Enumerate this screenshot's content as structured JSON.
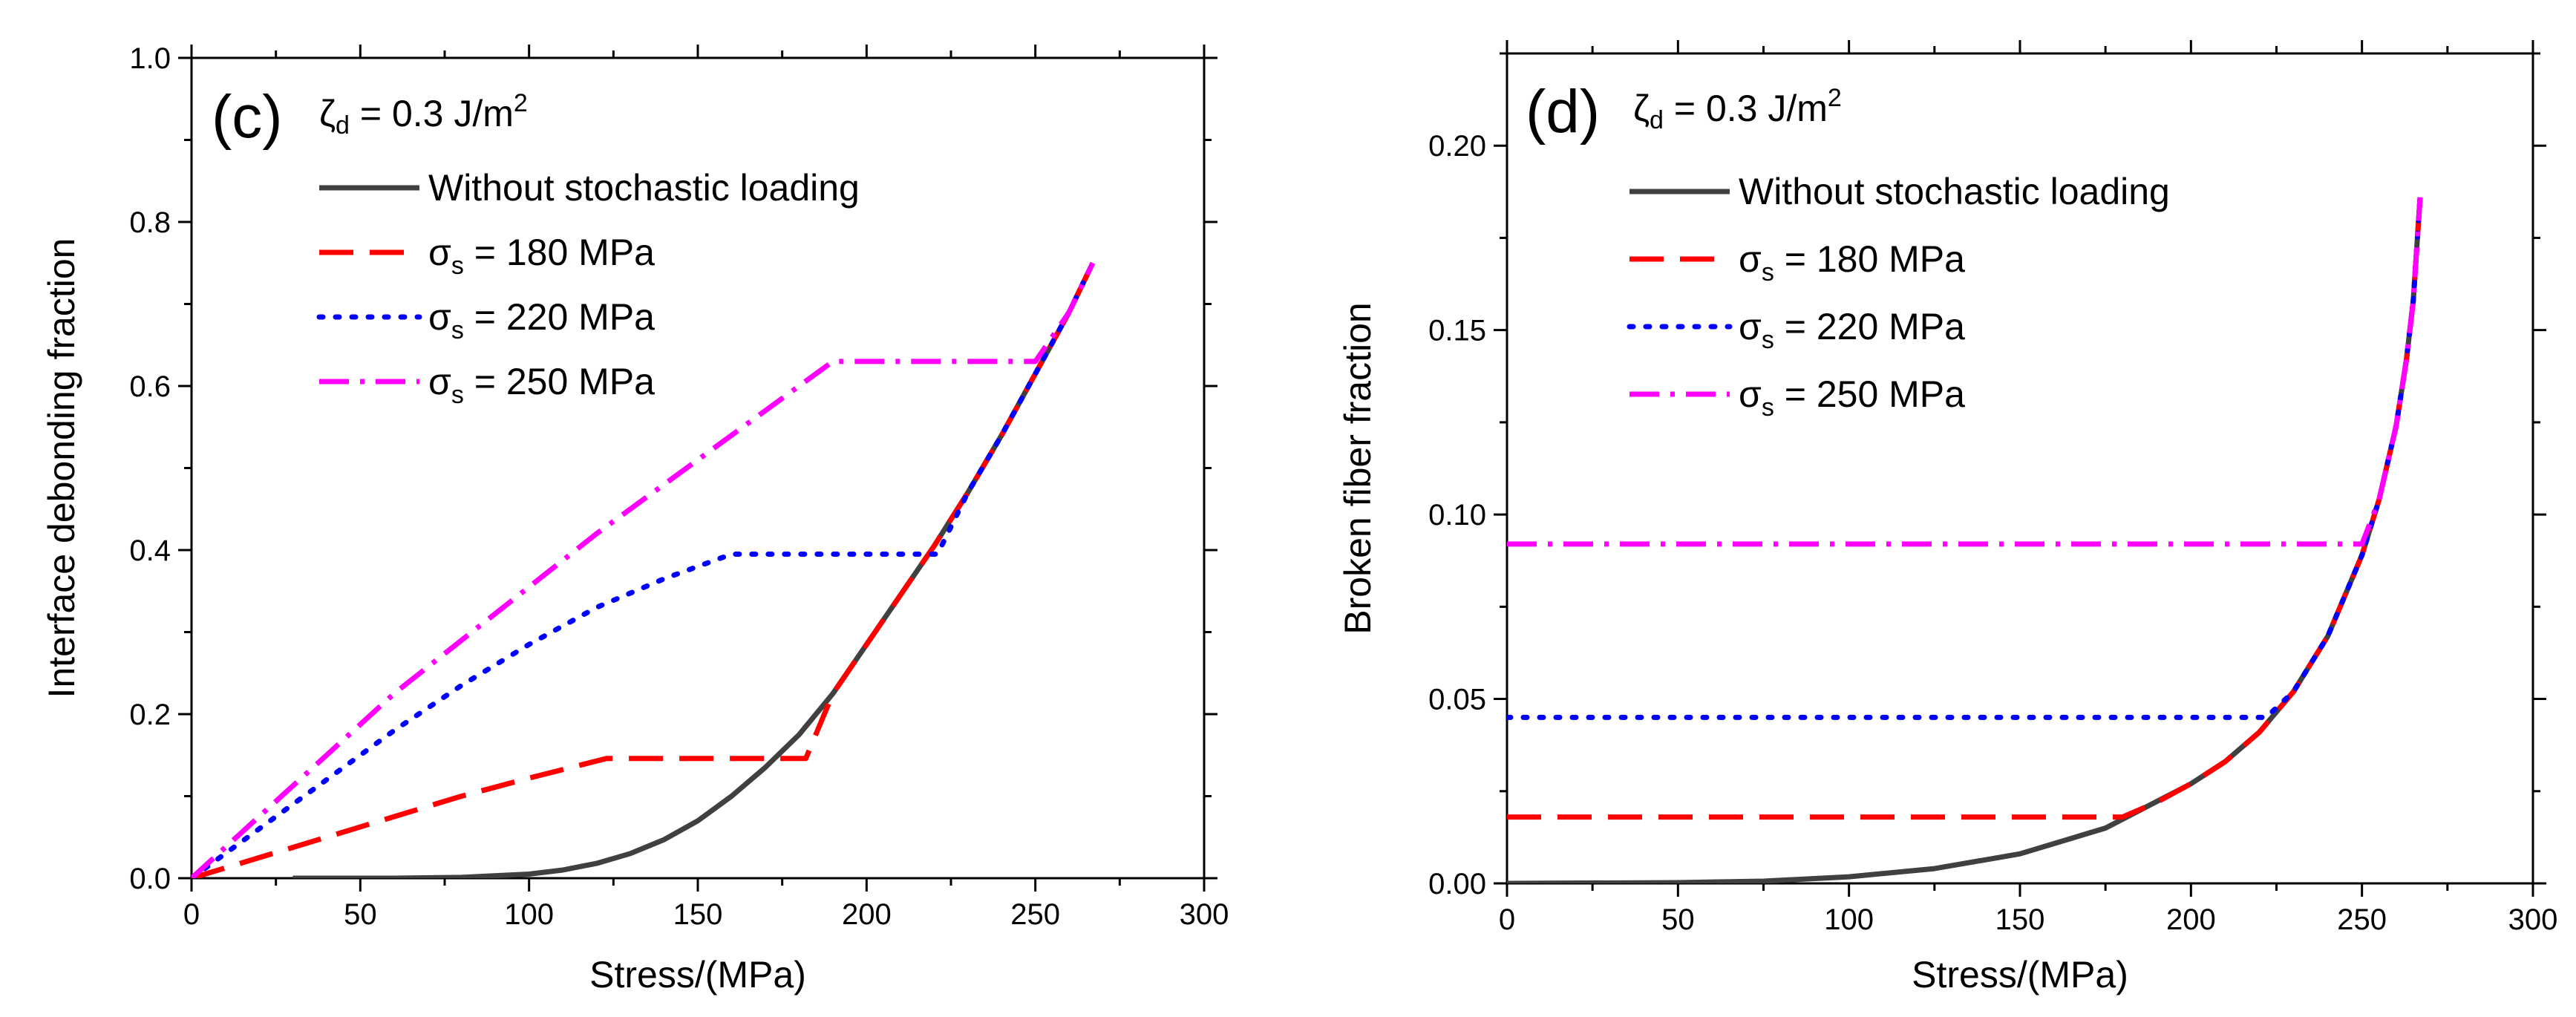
{
  "chart_data": [
    {
      "type": "line",
      "panel_label": "(c)",
      "parameter_symbol": "ζ",
      "parameter_subscript": "d",
      "parameter_text": " = 0.3 J/m",
      "parameter_superscript": "2",
      "xlabel": "Stress/(MPa)",
      "ylabel": "Interface debonding fraction",
      "xlim": [
        0,
        300
      ],
      "ylim": [
        0,
        1.0
      ],
      "xticks": [
        0,
        50,
        100,
        150,
        200,
        250,
        300
      ],
      "xtick_labels": [
        "0",
        "50",
        "100",
        "150",
        "200",
        "250",
        "300"
      ],
      "yticks": [
        0,
        0.2,
        0.4,
        0.6,
        0.8,
        1.0
      ],
      "ytick_labels": [
        "0.0",
        "0.2",
        "0.4",
        "0.6",
        "0.8",
        "1.0"
      ],
      "grid": false,
      "legend_position": "top-left",
      "series": [
        {
          "name": "Without stochastic loading",
          "color": "#404040",
          "dash": "solid",
          "points": [
            [
              30,
              0
            ],
            [
              60,
              0
            ],
            [
              80,
              0.001
            ],
            [
              100,
              0.005
            ],
            [
              110,
              0.01
            ],
            [
              120,
              0.018
            ],
            [
              130,
              0.03
            ],
            [
              140,
              0.047
            ],
            [
              150,
              0.07
            ],
            [
              160,
              0.1
            ],
            [
              170,
              0.135
            ],
            [
              180,
              0.175
            ],
            [
              190,
              0.225
            ],
            [
              200,
              0.285
            ],
            [
              210,
              0.345
            ],
            [
              220,
              0.405
            ],
            [
              230,
              0.47
            ],
            [
              240,
              0.54
            ],
            [
              250,
              0.615
            ],
            [
              260,
              0.69
            ],
            [
              267,
              0.75
            ]
          ]
        },
        {
          "name_symbol": "σ",
          "name_subscript": "s",
          "name_rest": "  = 180 MPa",
          "color": "#ff0000",
          "dash": "dash",
          "points": [
            [
              0,
              0
            ],
            [
              20,
              0.025
            ],
            [
              40,
              0.05
            ],
            [
              60,
              0.075
            ],
            [
              80,
              0.1
            ],
            [
              100,
              0.122
            ],
            [
              123,
              0.146
            ],
            [
              150,
              0.146
            ],
            [
              182,
              0.146
            ],
            [
              190,
              0.225
            ],
            [
              200,
              0.285
            ],
            [
              210,
              0.345
            ],
            [
              220,
              0.405
            ],
            [
              230,
              0.47
            ],
            [
              240,
              0.54
            ],
            [
              250,
              0.615
            ],
            [
              260,
              0.69
            ],
            [
              267,
              0.75
            ]
          ]
        },
        {
          "name_symbol": "σ",
          "name_subscript": "s",
          "name_rest": " = 220 MPa",
          "color": "#0000ff",
          "dash": "dot",
          "points": [
            [
              0,
              0
            ],
            [
              20,
              0.06
            ],
            [
              40,
              0.12
            ],
            [
              60,
              0.18
            ],
            [
              80,
              0.235
            ],
            [
              100,
              0.285
            ],
            [
              120,
              0.33
            ],
            [
              140,
              0.365
            ],
            [
              160,
              0.395
            ],
            [
              190,
              0.395
            ],
            [
              221,
              0.395
            ],
            [
              230,
              0.47
            ],
            [
              240,
              0.54
            ],
            [
              250,
              0.615
            ],
            [
              260,
              0.69
            ],
            [
              267,
              0.75
            ]
          ]
        },
        {
          "name_symbol": "σ",
          "name_subscript": "s",
          "name_rest": " = 250 MPa",
          "color": "#ff00ff",
          "dash": "dashdot",
          "points": [
            [
              0,
              0
            ],
            [
              20,
              0.075
            ],
            [
              40,
              0.15
            ],
            [
              60,
              0.225
            ],
            [
              80,
              0.29
            ],
            [
              100,
              0.355
            ],
            [
              120,
              0.42
            ],
            [
              140,
              0.48
            ],
            [
              160,
              0.54
            ],
            [
              180,
              0.6
            ],
            [
              190,
              0.63
            ],
            [
              220,
              0.63
            ],
            [
              250,
              0.63
            ],
            [
              260,
              0.69
            ],
            [
              267,
              0.75
            ]
          ]
        }
      ]
    },
    {
      "type": "line",
      "panel_label": "(d)",
      "parameter_symbol": "ζ",
      "parameter_subscript": "d",
      "parameter_text": " = 0.3 J/m",
      "parameter_superscript": "2",
      "xlabel": "Stress/(MPa)",
      "ylabel": "Broken fiber fraction",
      "xlim": [
        0,
        300
      ],
      "ylim": [
        0,
        0.225
      ],
      "xticks": [
        0,
        50,
        100,
        150,
        200,
        250,
        300
      ],
      "xtick_labels": [
        "0",
        "50",
        "100",
        "150",
        "200",
        "250",
        "300"
      ],
      "yticks": [
        0,
        0.05,
        0.1,
        0.15,
        0.2
      ],
      "ytick_labels": [
        "0.00",
        "0.05",
        "0.10",
        "0.15",
        "0.20"
      ],
      "grid": false,
      "legend_position": "top-left",
      "series": [
        {
          "name": "Without stochastic loading",
          "color": "#404040",
          "dash": "solid",
          "points": [
            [
              0,
              0
            ],
            [
              50,
              0.0002
            ],
            [
              75,
              0.0006
            ],
            [
              100,
              0.0018
            ],
            [
              125,
              0.004
            ],
            [
              150,
              0.008
            ],
            [
              175,
              0.015
            ],
            [
              200,
              0.027
            ],
            [
              210,
              0.033
            ],
            [
              220,
              0.041
            ],
            [
              230,
              0.052
            ],
            [
              240,
              0.067
            ],
            [
              250,
              0.089
            ],
            [
              255,
              0.104
            ],
            [
              260,
              0.124
            ],
            [
              263,
              0.142
            ],
            [
              265,
              0.158
            ],
            [
              267,
              0.186
            ]
          ]
        },
        {
          "name_symbol": "σ",
          "name_subscript": "s",
          "name_rest": "  = 180 MPa",
          "color": "#ff0000",
          "dash": "dash",
          "points": [
            [
              0,
              0.018
            ],
            [
              100,
              0.018
            ],
            [
              175,
              0.018
            ],
            [
              180,
              0.018
            ],
            [
              190,
              0.022
            ],
            [
              200,
              0.027
            ],
            [
              210,
              0.033
            ],
            [
              220,
              0.041
            ],
            [
              230,
              0.052
            ],
            [
              240,
              0.067
            ],
            [
              250,
              0.089
            ],
            [
              255,
              0.104
            ],
            [
              260,
              0.124
            ],
            [
              263,
              0.142
            ],
            [
              265,
              0.158
            ],
            [
              267,
              0.186
            ]
          ]
        },
        {
          "name_symbol": "σ",
          "name_subscript": "s",
          "name_rest": " = 220 MPa",
          "color": "#0000ff",
          "dash": "dot",
          "points": [
            [
              0,
              0.045
            ],
            [
              100,
              0.045
            ],
            [
              200,
              0.045
            ],
            [
              222,
              0.045
            ],
            [
              230,
              0.052
            ],
            [
              240,
              0.067
            ],
            [
              250,
              0.089
            ],
            [
              255,
              0.104
            ],
            [
              260,
              0.124
            ],
            [
              263,
              0.142
            ],
            [
              265,
              0.158
            ],
            [
              267,
              0.186
            ]
          ]
        },
        {
          "name_symbol": "σ",
          "name_subscript": "s",
          "name_rest": " = 250 MPa",
          "color": "#ff00ff",
          "dash": "dashdot",
          "points": [
            [
              0,
              0.092
            ],
            [
              100,
              0.092
            ],
            [
              200,
              0.092
            ],
            [
              250,
              0.092
            ],
            [
              255,
              0.104
            ],
            [
              260,
              0.124
            ],
            [
              263,
              0.142
            ],
            [
              265,
              0.158
            ],
            [
              267,
              0.186
            ]
          ]
        }
      ]
    }
  ]
}
